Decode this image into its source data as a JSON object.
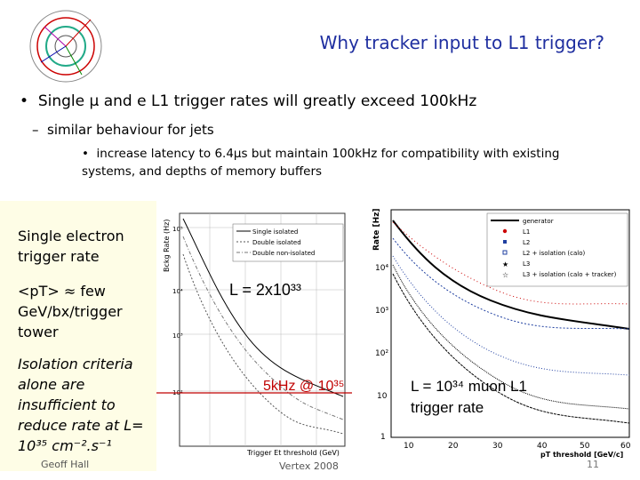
{
  "slide_title": "Why tracker input to L1 trigger?",
  "bullets": {
    "level1": "Single μ and e L1 trigger rates will greatly exceed 100kHz",
    "level2": "similar behaviour for jets",
    "level3": "increase latency to 6.4μs but maintain 100kHz for compatibility with existing systems, and depths of memory buffers"
  },
  "side_text": {
    "p1": "Single electron trigger rate",
    "p2": "<pT> ≈ few GeV/bx/trigger tower",
    "p3": "Isolation criteria alone are insufficient to reduce rate at L= 10³⁵ cm⁻².s⁻¹"
  },
  "annotations": {
    "lumi": "L = 2x10³³",
    "rate": "5kHz @ 10³⁵",
    "muon": "L = 10³⁴ muon L1 trigger rate"
  },
  "footer": {
    "left": "Geoff Hall",
    "center": "Vertex 2008",
    "page": "11"
  },
  "plot_left": {
    "ylabel": "Bckg Rate (Hz)",
    "xlabel": "Trigger Et threshold (GeV)",
    "yticks": [
      "10⁵",
      "10⁴",
      "10³",
      "10²"
    ],
    "legend": [
      "Single isolated",
      "Double isolated",
      "Double non-isolated"
    ]
  },
  "plot_right": {
    "ylabel": "Rate [Hz]",
    "xlabel": "pT threshold [GeV/c]",
    "yticks": [
      "10⁴",
      "10³",
      "10²",
      "10",
      "1"
    ],
    "xticks": [
      "10",
      "20",
      "30",
      "40",
      "50",
      "60"
    ],
    "legend": [
      "generator",
      "L1",
      "L2",
      "L2 + isolation (calo)",
      "L3",
      "L3 + isolation (calo + tracker)"
    ]
  }
}
